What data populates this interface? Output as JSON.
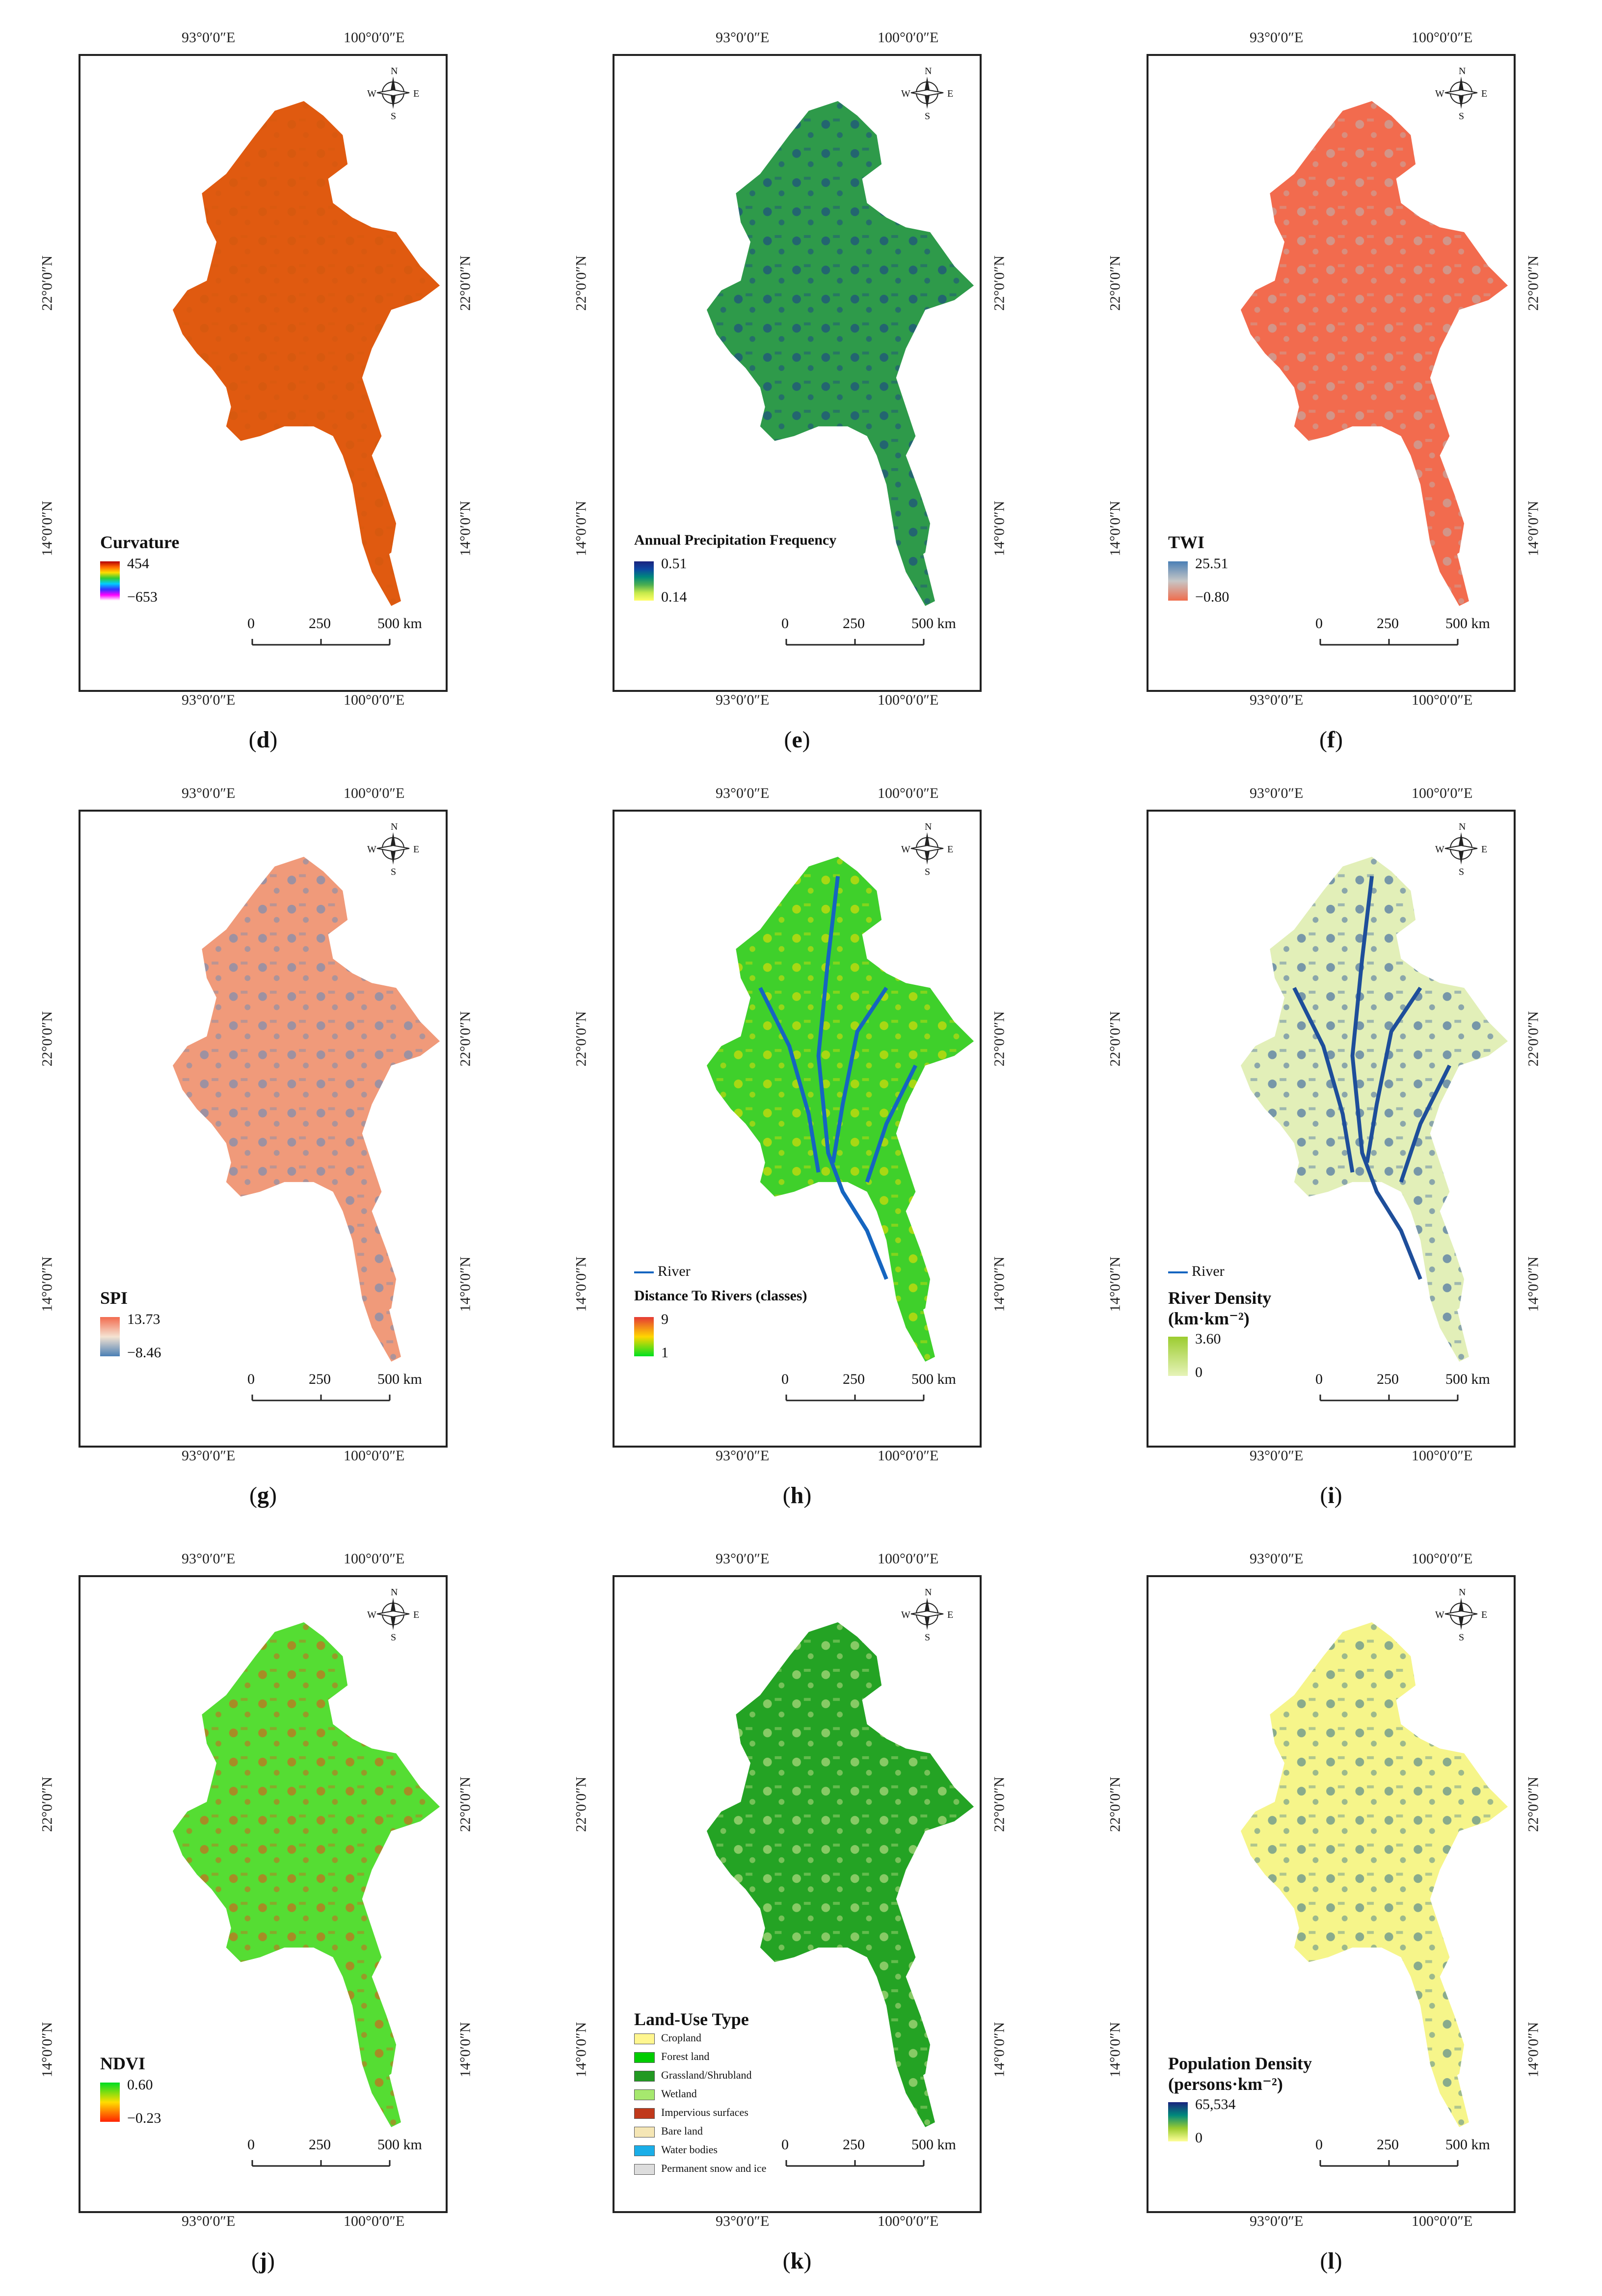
{
  "panels": [
    {
      "id": "d",
      "caption": "d",
      "legend_title": "Curvature",
      "legend_max": "454",
      "legend_min": "−653",
      "ramp": [
        "#b30000",
        "#ff6600",
        "#ffdd00",
        "#33cc33",
        "#00ccff",
        "#3333ff",
        "#ff00ff",
        "#ffffff"
      ],
      "fill": "#e05a10",
      "accent": "#d0580f"
    },
    {
      "id": "e",
      "caption": "e",
      "legend_title": "Annual Precipitation Frequency",
      "legend_max": "0.51",
      "legend_min": "0.14",
      "ramp": [
        "#1a237e",
        "#0d47a1",
        "#00897b",
        "#4caf50",
        "#c6e94a",
        "#ffff66"
      ],
      "fill": "#2e9a4a",
      "accent": "#1a3a8f"
    },
    {
      "id": "f",
      "caption": "f",
      "legend_title": "TWI",
      "legend_max": "25.51",
      "legend_min": "−0.80",
      "ramp": [
        "#4a7fb5",
        "#c6c6c6",
        "#f06c4c"
      ],
      "fill": "#f26b4e",
      "accent": "#b8b8b8"
    },
    {
      "id": "g",
      "caption": "g",
      "legend_title": "SPI",
      "legend_max": "13.73",
      "legend_min": "−8.46",
      "ramp": [
        "#f26b4e",
        "#f5e3d2",
        "#4a7fb5"
      ],
      "fill": "#f09a7a",
      "accent": "#5b8ac0"
    },
    {
      "id": "h",
      "caption": "h",
      "legend_title": "Distance To Rivers (classes)",
      "legend_max": "9",
      "legend_min": "1",
      "ramp": [
        "#e53935",
        "#ffd600",
        "#00e020"
      ],
      "fill": "#3fd02b",
      "accent": "#ffde00",
      "river_key": "River"
    },
    {
      "id": "i",
      "caption": "i",
      "legend_title": "River Density",
      "legend_title2": "(km·km⁻²)",
      "legend_max": "3.60",
      "legend_min": "0",
      "ramp": [
        "#9ccc30",
        "#e6f3b8"
      ],
      "fill": "#e2efb8",
      "accent": "#1e4e9a",
      "river_key": "River"
    },
    {
      "id": "j",
      "caption": "j",
      "legend_title": "NDVI",
      "legend_max": "0.60",
      "legend_min": "−0.23",
      "ramp": [
        "#00dd22",
        "#ffdd00",
        "#ff2200"
      ],
      "fill": "#55dd33",
      "accent": "#e84a1a"
    },
    {
      "id": "k",
      "caption": "k",
      "legend_title": "Land-Use Type",
      "fill": "#24a324",
      "accent": "#d9e89a",
      "classes": [
        {
          "label": "Cropland",
          "color": "#fff68f"
        },
        {
          "label": "Forest land",
          "color": "#00cc00"
        },
        {
          "label": "Grassland/Shrubland",
          "color": "#229922"
        },
        {
          "label": "Wetland",
          "color": "#a6e86e"
        },
        {
          "label": "Impervious surfaces",
          "color": "#c0391b"
        },
        {
          "label": "Bare land",
          "color": "#f5e6b5"
        },
        {
          "label": "Water bodies",
          "color": "#1aaee8"
        },
        {
          "label": "Permanent snow and ice",
          "color": "#dddddd"
        }
      ]
    },
    {
      "id": "l",
      "caption": "l",
      "legend_title": "Population Density",
      "legend_title2": "(persons·km⁻²)",
      "legend_max": "65,534",
      "legend_min": "0",
      "ramp": [
        "#1a237e",
        "#00897b",
        "#9ccc30",
        "#ffff99"
      ],
      "fill": "#f6f58a",
      "accent": "#2f6e8e"
    }
  ],
  "ticks": {
    "lon1": "93°0′0″E",
    "lon2": "100°0′0″E",
    "lat1": "22°0′0″N",
    "lat2": "14°0′0″N"
  },
  "scale": {
    "l0": "0",
    "l1": "250",
    "l2": "500 km"
  },
  "compass": {
    "n": "N",
    "s": "S",
    "e": "E",
    "w": "W"
  }
}
